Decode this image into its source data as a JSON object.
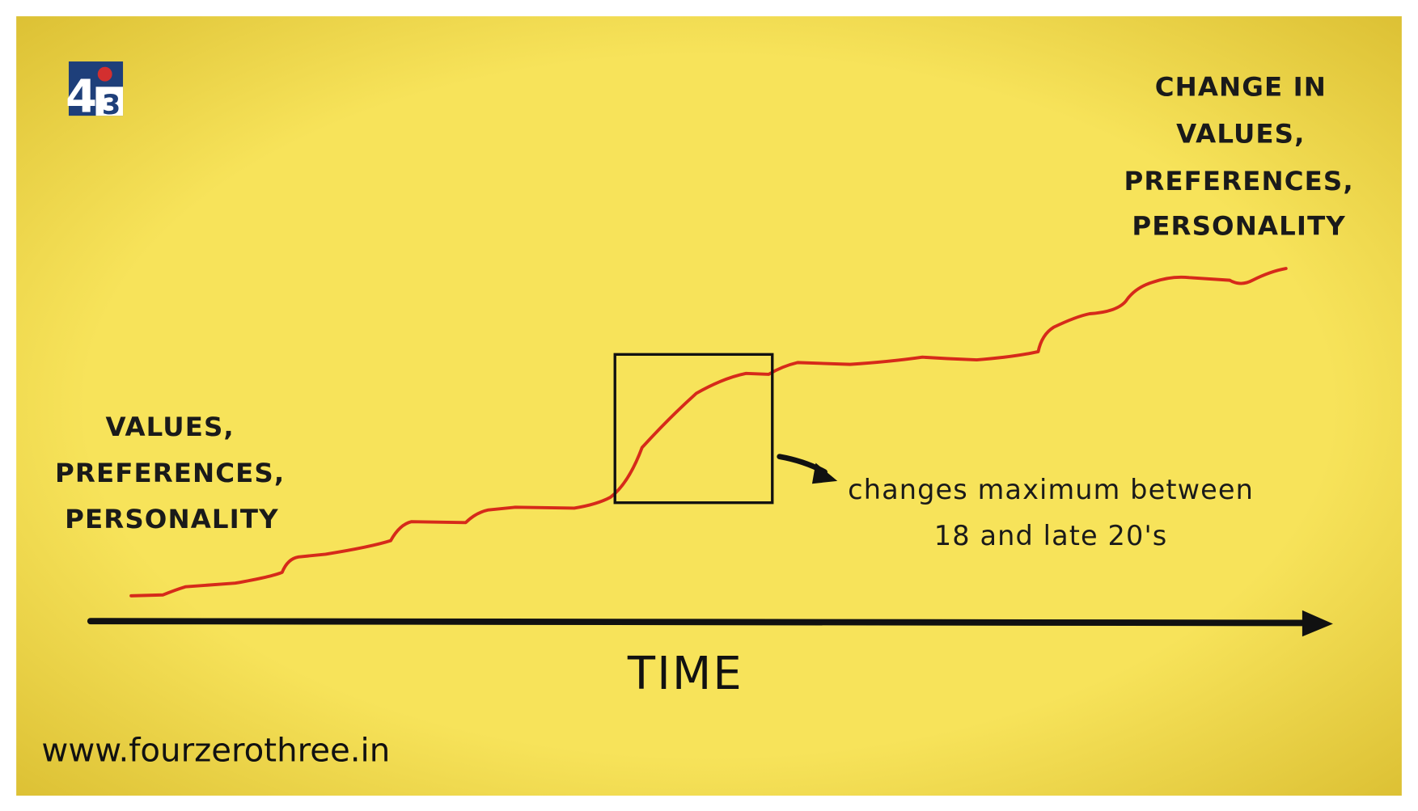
{
  "logo": {
    "digit_left": "4",
    "digit_right": "3"
  },
  "top_right_label": {
    "lines": [
      "CHANGE IN",
      "VALUES,",
      "PREFERENCES,",
      "PERSONALITY"
    ]
  },
  "left_label": {
    "lines": [
      "VALUES,",
      "PREFERENCES,",
      "PERSONALITY"
    ]
  },
  "annotation": {
    "lines": [
      "changes maximum between",
      "18 and late 20's"
    ]
  },
  "axis_label": "TIME",
  "website": "www.fourzerothree.in"
}
